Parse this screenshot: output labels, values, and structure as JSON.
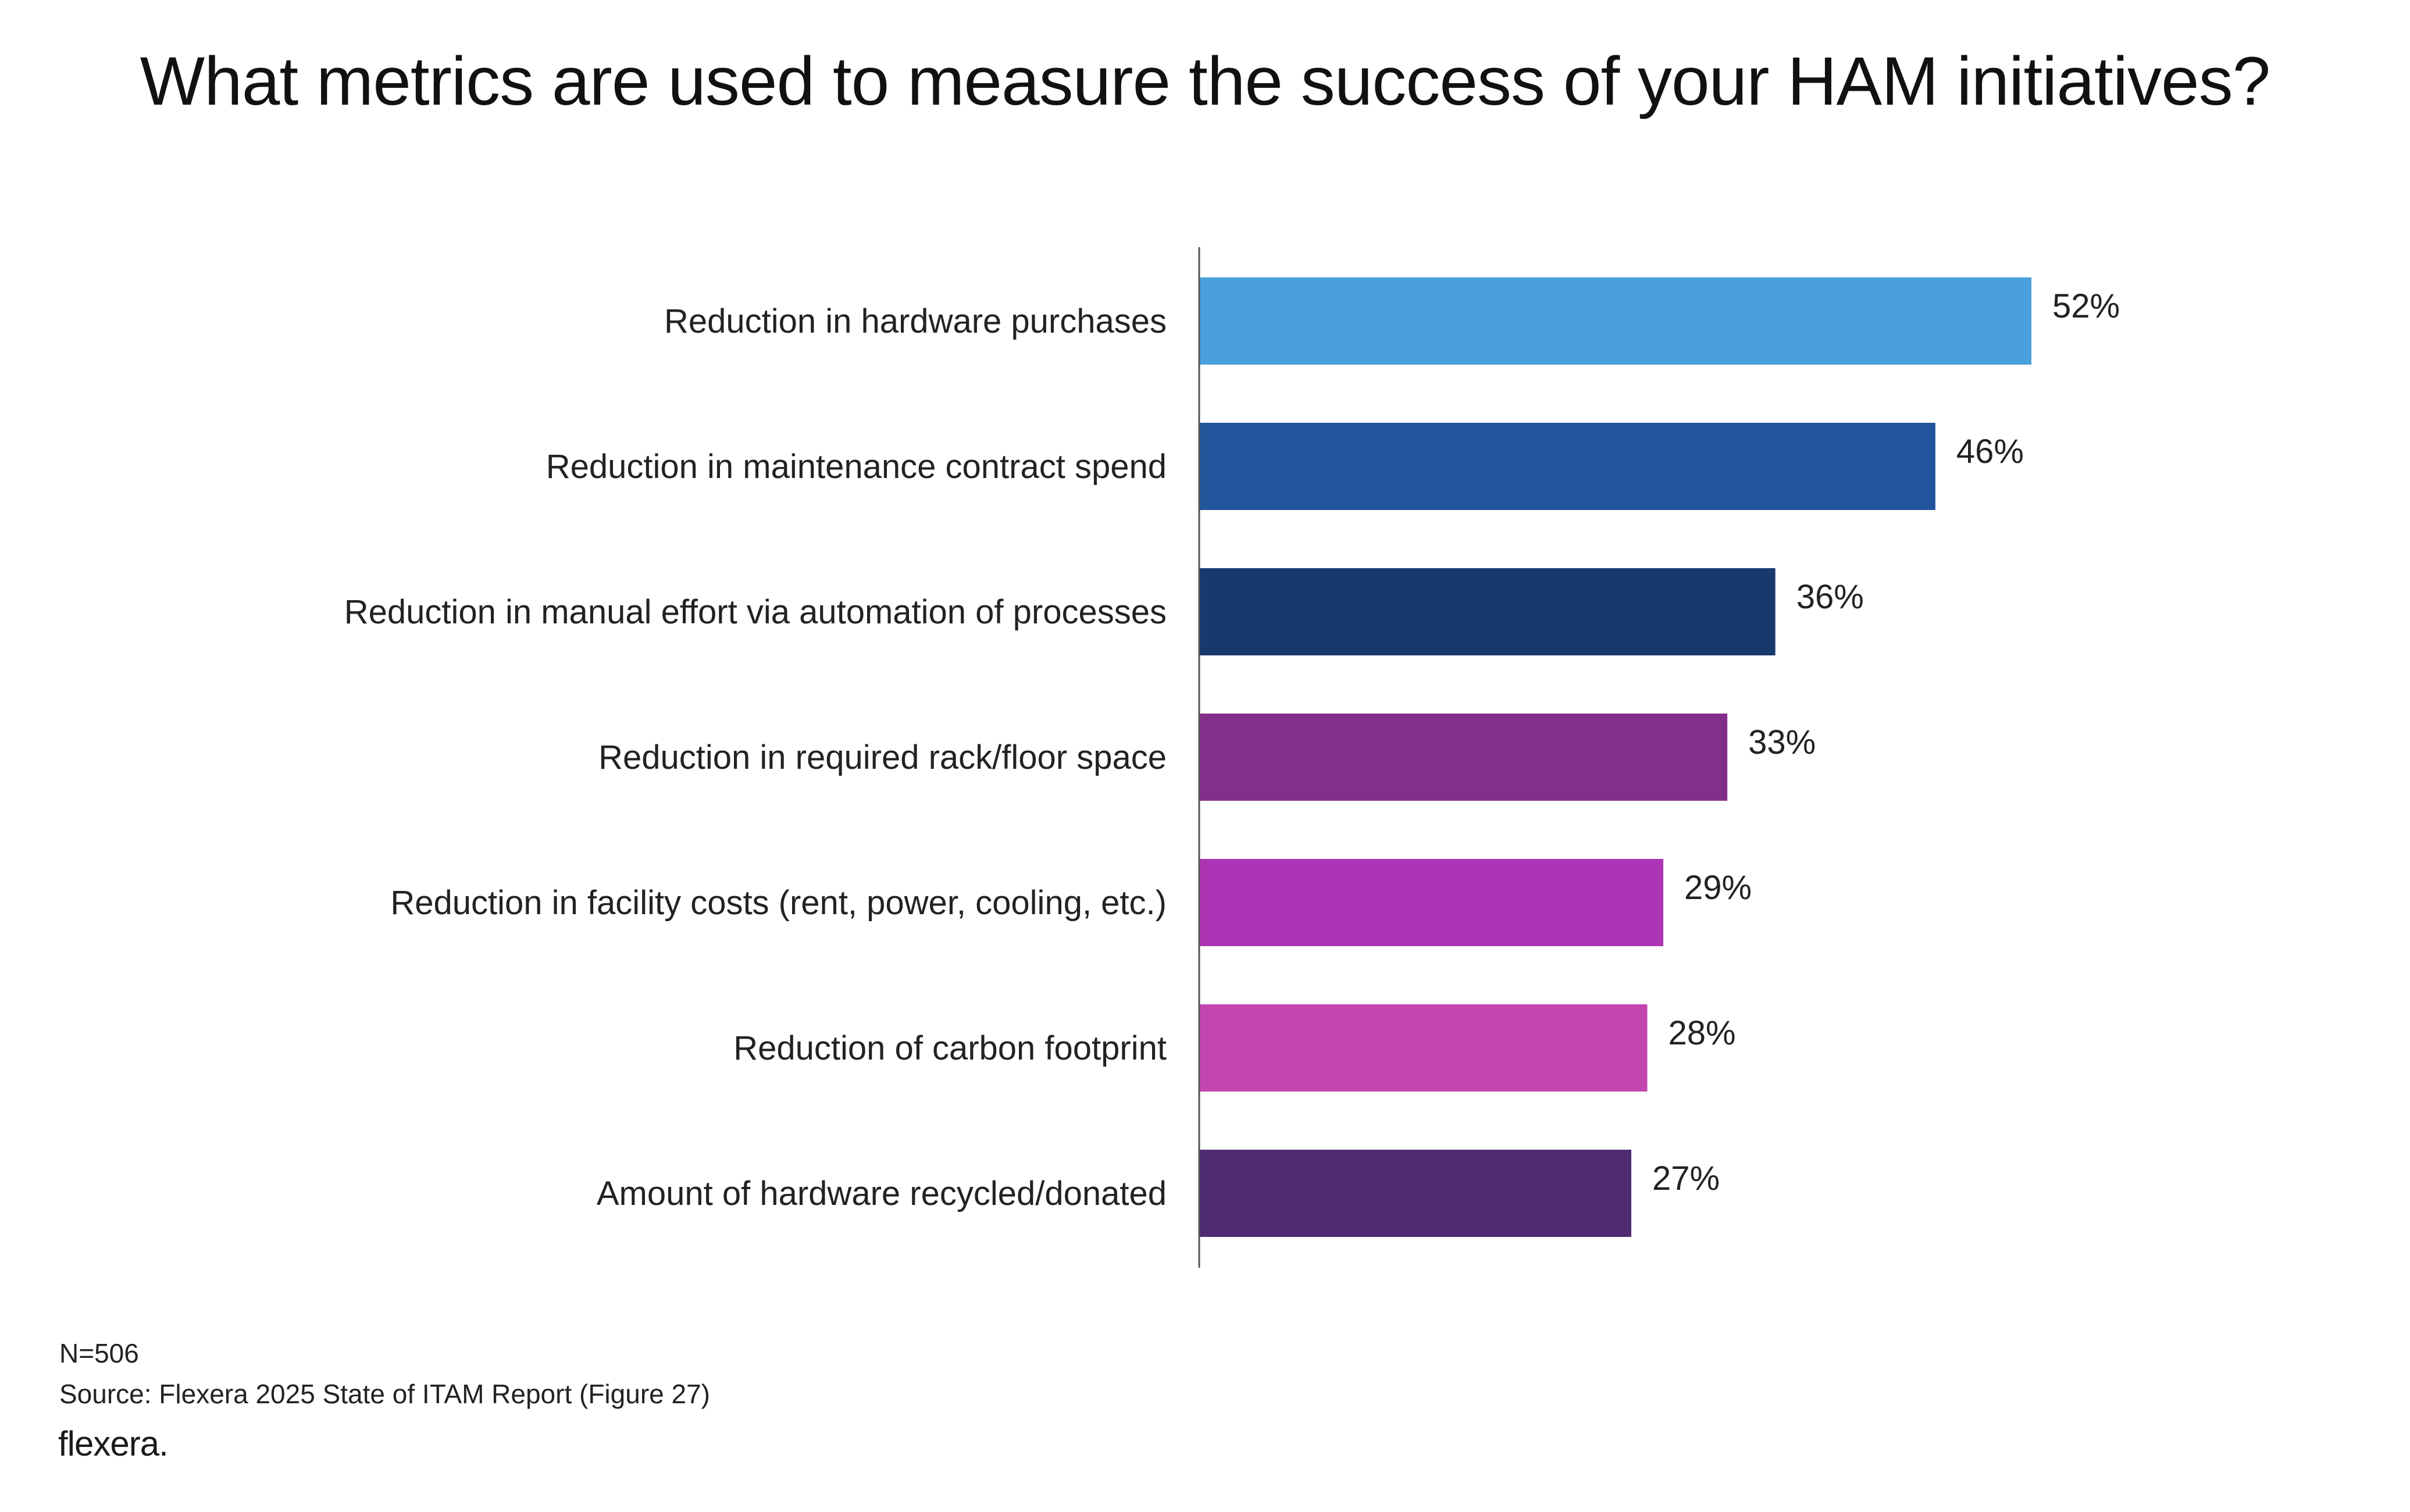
{
  "title": "What metrics are used to measure the success of your HAM initiatives?",
  "footer": {
    "n": "N=506",
    "source": "Source: Flexera 2025 State of ITAM Report (Figure 27)",
    "logo": "flexera"
  },
  "chart_data": {
    "type": "bar",
    "orientation": "horizontal",
    "title": "What metrics are used to measure the success of your HAM initiatives?",
    "xlabel": "",
    "ylabel": "",
    "xlim": [
      0,
      60
    ],
    "unit": "%",
    "categories": [
      "Reduction in hardware purchases",
      "Reduction in maintenance contract spend",
      "Reduction in manual effort via automation of processes",
      "Reduction in required rack/floor space",
      "Reduction in facility costs (rent, power, cooling, etc.)",
      "Reduction of carbon footprint",
      "Amount of hardware recycled/donated"
    ],
    "values": [
      52,
      46,
      36,
      33,
      29,
      28,
      27
    ],
    "labels": [
      "52%",
      "46%",
      "36%",
      "33%",
      "29%",
      "28%",
      "27%"
    ],
    "colors": [
      "#4aa0db",
      "#22559c",
      "#17396d",
      "#832f89",
      "#ad34b5",
      "#c346b0",
      "#4e2b72"
    ],
    "axis_color": "#555555",
    "grid": false,
    "legend": "none"
  }
}
